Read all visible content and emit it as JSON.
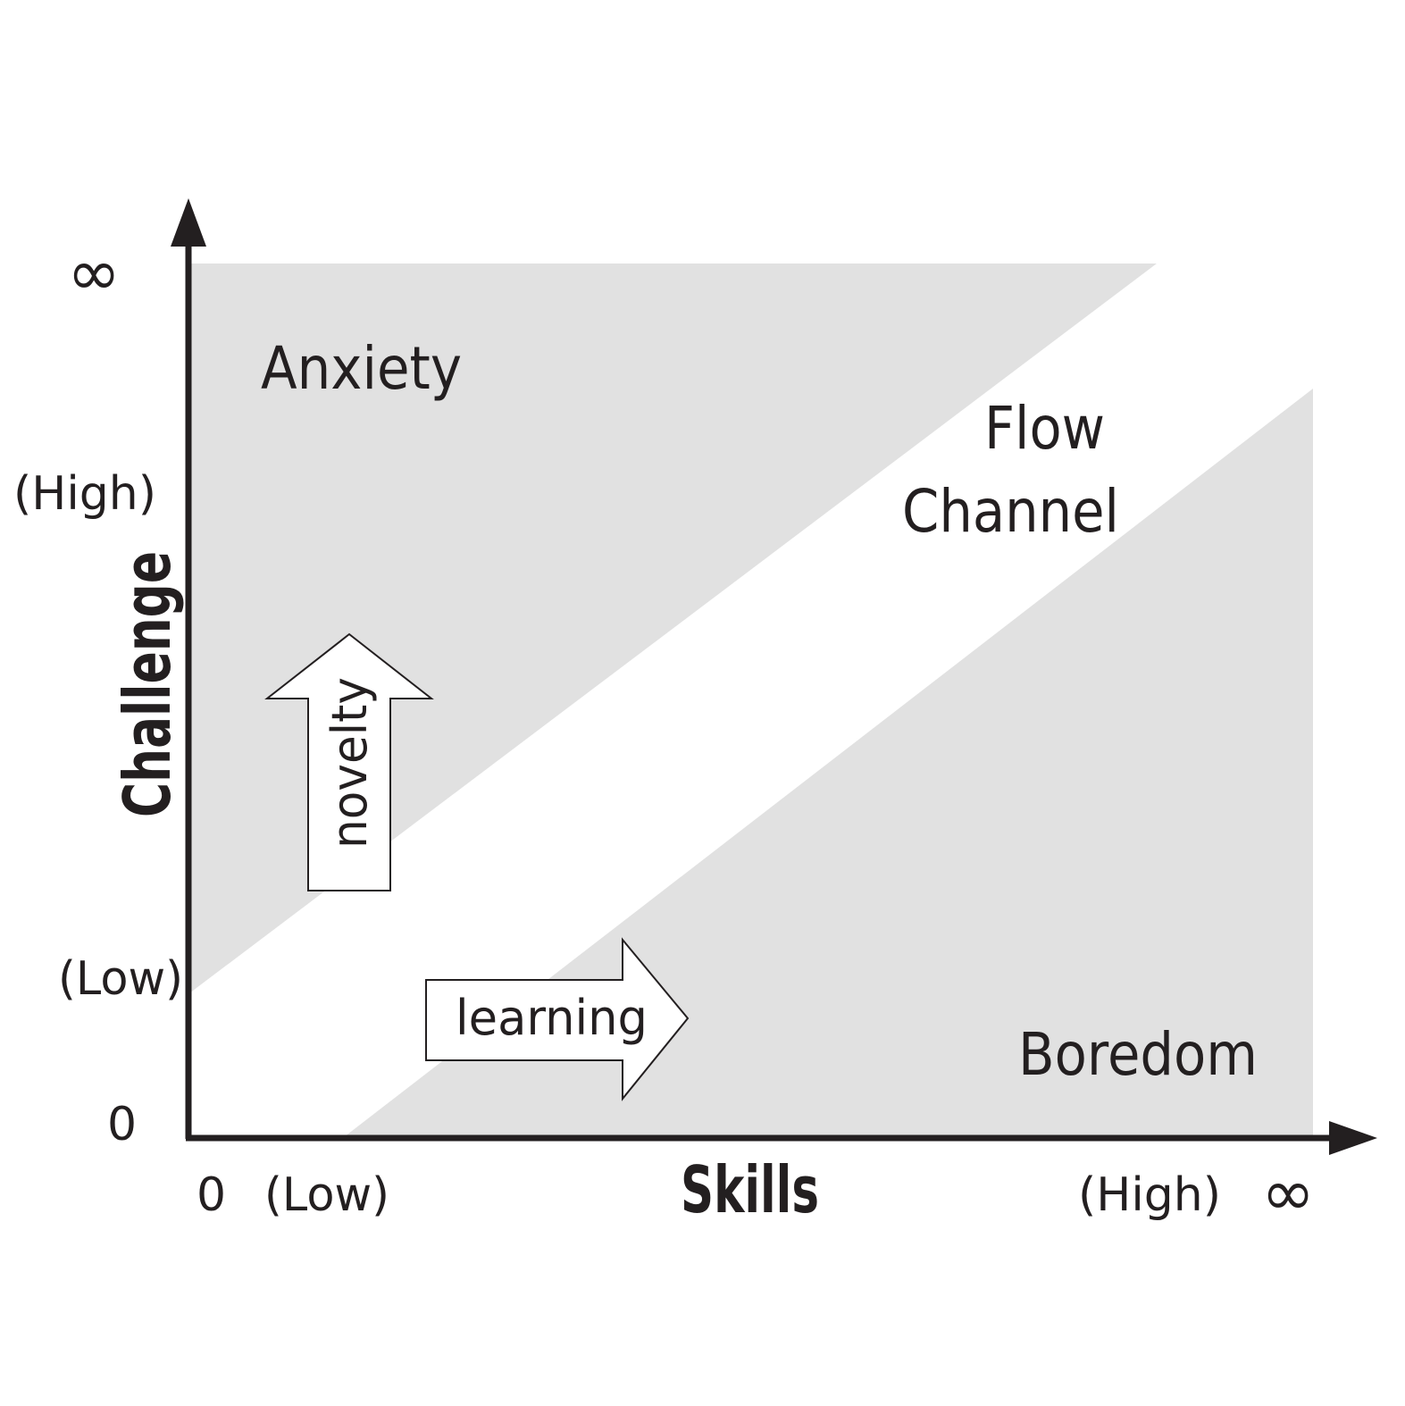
{
  "axes": {
    "x": {
      "title": "Skills",
      "ticks": {
        "zero": "0",
        "low": "(Low)",
        "high": "(High)",
        "infinity": "∞"
      }
    },
    "y": {
      "title": "Challenge",
      "ticks": {
        "zero": "0",
        "low": "(Low)",
        "high": "(High)",
        "infinity": "∞"
      }
    }
  },
  "regions": {
    "anxiety": "Anxiety",
    "flow_line1": "Flow",
    "flow_line2": "Channel",
    "boredom": "Boredom"
  },
  "arrows": {
    "novelty": "novelty",
    "learning": "learning"
  },
  "colors": {
    "region_fill": "#e1e1e1",
    "axis": "#231f20",
    "arrow_fill": "#ffffff",
    "arrow_stroke": "#231f20"
  }
}
